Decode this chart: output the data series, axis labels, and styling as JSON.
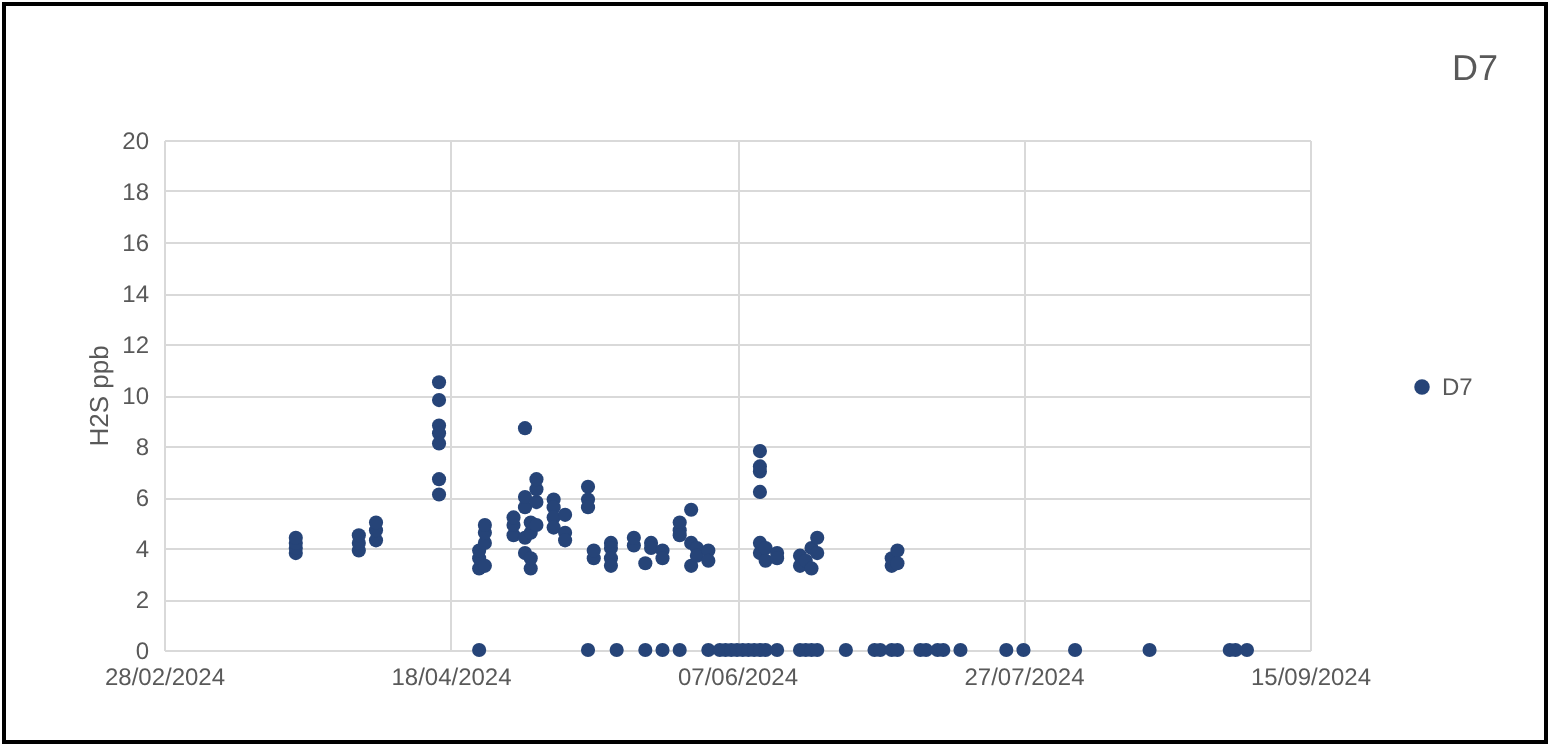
{
  "chart_data": {
    "type": "scatter",
    "title": "D7",
    "ylabel": "H2S ppb",
    "xlim": [
      "2024-02-28",
      "2024-09-15"
    ],
    "xticks": [
      {
        "value": "2024-02-28",
        "label": "28/02/2024"
      },
      {
        "value": "2024-04-18",
        "label": "18/04/2024"
      },
      {
        "value": "2024-06-07",
        "label": "07/06/2024"
      },
      {
        "value": "2024-07-27",
        "label": "27/07/2024"
      },
      {
        "value": "2024-09-15",
        "label": "15/09/2024"
      }
    ],
    "ylim": [
      0,
      20
    ],
    "yticks": [
      0,
      2,
      4,
      6,
      8,
      10,
      12,
      14,
      16,
      18,
      20
    ],
    "grid": true,
    "legend": "right",
    "marker": "circle",
    "series": [
      {
        "name": "D7",
        "color": "#264478",
        "x": [
          "2024-03-22",
          "2024-03-22",
          "2024-03-22",
          "2024-03-22",
          "2024-04-02",
          "2024-04-02",
          "2024-04-02",
          "2024-04-05",
          "2024-04-05",
          "2024-04-05",
          "2024-04-16",
          "2024-04-16",
          "2024-04-16",
          "2024-04-16",
          "2024-04-16",
          "2024-04-16",
          "2024-04-16",
          "2024-04-23",
          "2024-04-23",
          "2024-04-23",
          "2024-04-23",
          "2024-04-24",
          "2024-04-24",
          "2024-04-24",
          "2024-04-24",
          "2024-04-29",
          "2024-04-29",
          "2024-04-29",
          "2024-05-01",
          "2024-05-01",
          "2024-05-01",
          "2024-05-01",
          "2024-05-01",
          "2024-05-02",
          "2024-05-02",
          "2024-05-02",
          "2024-05-02",
          "2024-05-03",
          "2024-05-03",
          "2024-05-03",
          "2024-05-03",
          "2024-05-06",
          "2024-05-06",
          "2024-05-06",
          "2024-05-06",
          "2024-05-08",
          "2024-05-08",
          "2024-05-08",
          "2024-05-12",
          "2024-05-12",
          "2024-05-12",
          "2024-05-12",
          "2024-05-13",
          "2024-05-13",
          "2024-05-16",
          "2024-05-16",
          "2024-05-16",
          "2024-05-16",
          "2024-05-17",
          "2024-05-20",
          "2024-05-20",
          "2024-05-22",
          "2024-05-22",
          "2024-05-23",
          "2024-05-23",
          "2024-05-25",
          "2024-05-25",
          "2024-05-25",
          "2024-05-28",
          "2024-05-28",
          "2024-05-28",
          "2024-05-28",
          "2024-05-30",
          "2024-05-30",
          "2024-05-30",
          "2024-05-31",
          "2024-05-31",
          "2024-06-02",
          "2024-06-02",
          "2024-06-02",
          "2024-06-04",
          "2024-06-05",
          "2024-06-06",
          "2024-06-07",
          "2024-06-08",
          "2024-06-09",
          "2024-06-10",
          "2024-06-11",
          "2024-06-11",
          "2024-06-11",
          "2024-06-11",
          "2024-06-11",
          "2024-06-11",
          "2024-06-11",
          "2024-06-12",
          "2024-06-12",
          "2024-06-12",
          "2024-06-14",
          "2024-06-14",
          "2024-06-14",
          "2024-06-18",
          "2024-06-18",
          "2024-06-18",
          "2024-06-19",
          "2024-06-19",
          "2024-06-20",
          "2024-06-20",
          "2024-06-20",
          "2024-06-21",
          "2024-06-21",
          "2024-06-21",
          "2024-06-26",
          "2024-07-01",
          "2024-07-02",
          "2024-07-04",
          "2024-07-04",
          "2024-07-04",
          "2024-07-05",
          "2024-07-05",
          "2024-07-05",
          "2024-07-09",
          "2024-07-10",
          "2024-07-12",
          "2024-07-13",
          "2024-07-16",
          "2024-07-24",
          "2024-07-27",
          "2024-08-05",
          "2024-08-18",
          "2024-09-01",
          "2024-09-02",
          "2024-09-04"
        ],
        "values": [
          3.8,
          4.0,
          4.2,
          4.4,
          3.9,
          4.2,
          4.5,
          4.3,
          4.7,
          5.0,
          10.5,
          9.8,
          8.8,
          8.5,
          8.1,
          6.7,
          6.1,
          0,
          3.2,
          3.6,
          3.9,
          4.2,
          4.6,
          4.9,
          3.3,
          4.5,
          4.9,
          5.2,
          8.7,
          5.6,
          6.0,
          4.4,
          3.8,
          3.2,
          3.6,
          4.6,
          5.0,
          5.8,
          6.3,
          6.7,
          4.9,
          5.9,
          5.6,
          5.2,
          4.8,
          4.6,
          4.3,
          5.3,
          6.4,
          5.9,
          5.6,
          0,
          3.6,
          3.9,
          4.2,
          4.0,
          3.6,
          3.3,
          0,
          4.1,
          4.4,
          3.4,
          0,
          4.2,
          4.0,
          3.9,
          3.6,
          0,
          0,
          4.7,
          5.0,
          4.5,
          5.5,
          4.2,
          3.3,
          4.0,
          3.7,
          3.9,
          3.5,
          0,
          0,
          0,
          0,
          0,
          0,
          0,
          0,
          7.8,
          7.0,
          7.2,
          6.2,
          3.8,
          4.2,
          0,
          3.5,
          4.0,
          0,
          3.8,
          3.6,
          0,
          3.7,
          3.3,
          0,
          3.5,
          0,
          4.0,
          3.2,
          0,
          4.4,
          3.8,
          0,
          0,
          0,
          0,
          3.3,
          3.6,
          0,
          3.9,
          3.4,
          0,
          0,
          0,
          0,
          0,
          0,
          0,
          0,
          0,
          0,
          0,
          0,
          0
        ]
      }
    ]
  }
}
